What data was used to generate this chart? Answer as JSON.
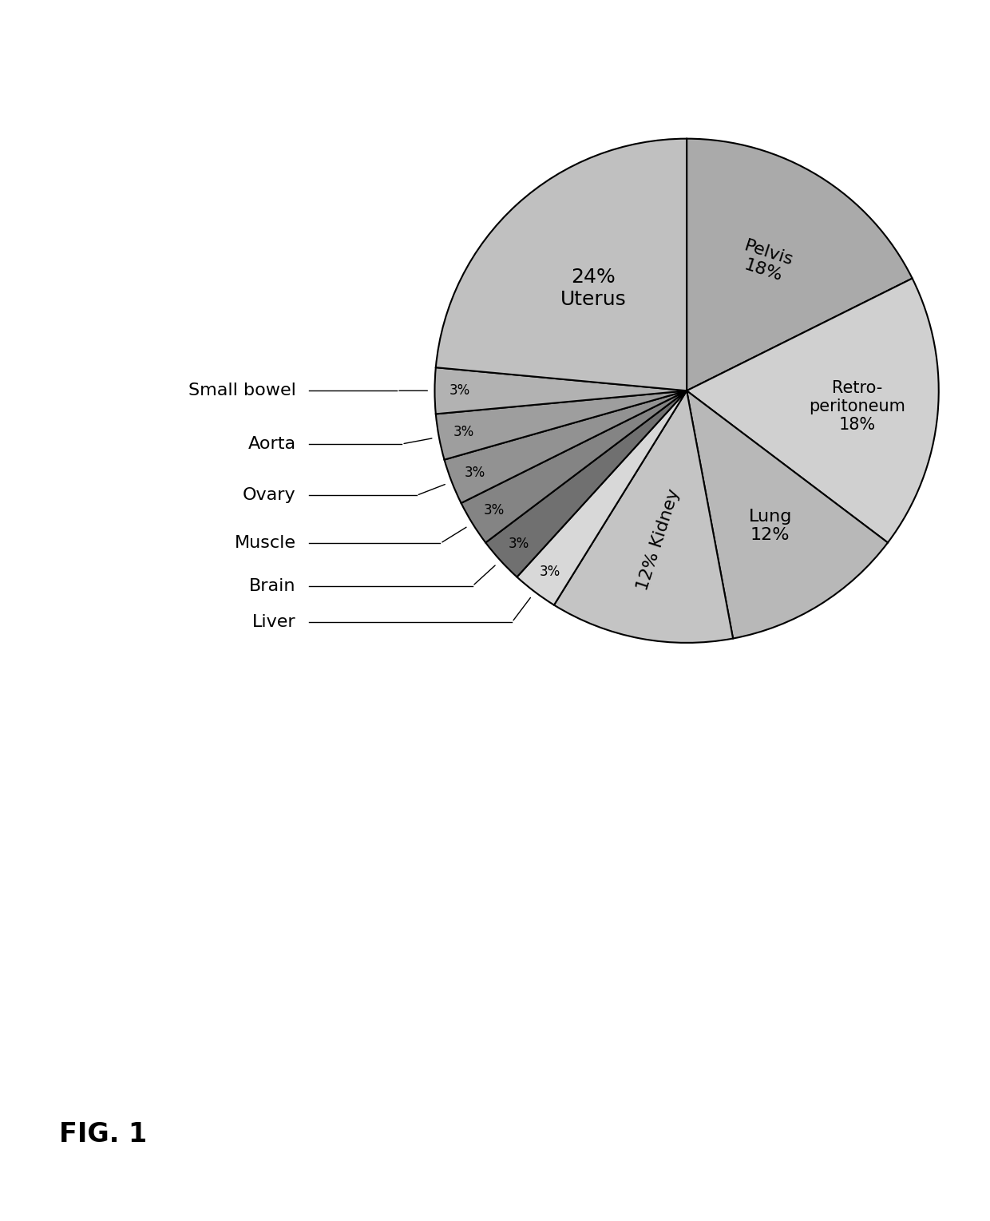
{
  "values": [
    18,
    18,
    12,
    12,
    3,
    3,
    3,
    3,
    3,
    3,
    24
  ],
  "colors": [
    "#aaaaaa",
    "#d0d0d0",
    "#b8b8b8",
    "#c4c4c4",
    "#d8d8d8",
    "#707070",
    "#848484",
    "#929292",
    "#9e9e9e",
    "#b2b2b2",
    "#c0c0c0"
  ],
  "startangle": 90,
  "background_color": "#ffffff",
  "fig_label": "FIG. 1",
  "fig_label_fontsize": 24,
  "label_fontsize": 16,
  "small_label_fontsize": 16,
  "pct_fontsize": 14
}
